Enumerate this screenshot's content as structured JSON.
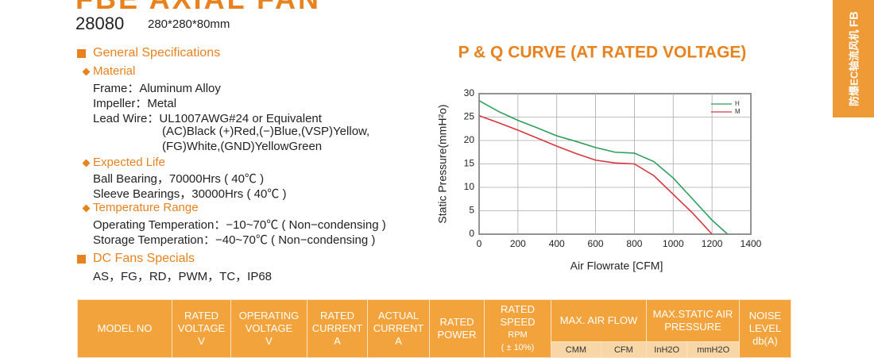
{
  "header": {
    "title": "FBE AXIAL FAN",
    "model": "28080",
    "size": "280*280*80mm"
  },
  "side_tab": {
    "label": "防爆EC轴流风机",
    "code": "FB"
  },
  "specs": {
    "general": {
      "heading": "General Specifications",
      "groups": [
        {
          "heading": "Material",
          "lines": [
            "Frame：Aluminum Alloy",
            "Impeller：Metal",
            "Lead Wire：UL1007AWG#24 or Equivalent",
            "(AC)Black (+)Red,(−)Blue,(VSP)Yellow,",
            "(FG)White,(GND)YellowGreen"
          ]
        },
        {
          "heading": "Expected Life",
          "lines": [
            "Ball Bearing，70000Hrs ( 40℃ )",
            "Sleeve Bearings，30000Hrs ( 40℃ )"
          ]
        },
        {
          "heading": "Temperature Range",
          "lines": [
            "Operating Temperation：−10~70℃ ( Non−condensing )",
            "Storage Temperation：−40~70℃ ( Non−condensing )"
          ]
        }
      ]
    },
    "dc_specials": {
      "heading": "DC Fans Specials",
      "lines": [
        "AS，FG，RD，PWM，TC，IP68"
      ]
    }
  },
  "chart_data": {
    "type": "line",
    "title": "P & Q CURVE (AT RATED VOLTAGE)",
    "ylabel": "Static Pressure(mmH²o)",
    "xlabel": "Air Flowrate [CFM]",
    "xlim": [
      0,
      1400
    ],
    "xticks": [
      0,
      200,
      400,
      600,
      800,
      1000,
      1200,
      1400
    ],
    "ylim": [
      0,
      30
    ],
    "yticks": [
      0,
      5,
      10,
      15,
      20,
      25,
      30
    ],
    "grid": true,
    "legend": "upper right",
    "series": [
      {
        "name": "H",
        "color": "#2e9e5b",
        "x": [
          0,
          100,
          200,
          300,
          400,
          500,
          600,
          700,
          800,
          900,
          1000,
          1100,
          1200,
          1280
        ],
        "values": [
          28.5,
          26.2,
          24.3,
          22.7,
          21,
          19.8,
          18.5,
          17.5,
          17.3,
          15.5,
          12,
          7.5,
          3,
          0
        ]
      },
      {
        "name": "M",
        "color": "#d9363e",
        "x": [
          0,
          100,
          200,
          300,
          400,
          500,
          600,
          700,
          800,
          900,
          1000,
          1100,
          1200
        ],
        "values": [
          25.3,
          23.8,
          22.2,
          20.5,
          18.8,
          17.2,
          15.8,
          15.2,
          15,
          12.5,
          8.5,
          4.5,
          0
        ]
      }
    ]
  },
  "table": {
    "columns": [
      {
        "lines": [
          "MODEL NO"
        ]
      },
      {
        "lines": [
          "RATED",
          "VOLTAGE",
          "V"
        ]
      },
      {
        "lines": [
          "OPERATING",
          "VOLTAGE",
          "V"
        ]
      },
      {
        "lines": [
          "RATED",
          "CURRENT",
          "A"
        ]
      },
      {
        "lines": [
          "ACTUAL",
          "CURRENT",
          "A"
        ]
      },
      {
        "lines": [
          "RATED",
          "POWER"
        ]
      },
      {
        "lines": [
          "RATED SPEED",
          "RPM",
          "( ± 10%)"
        ]
      },
      {
        "lines": [
          "MAX. AIR FLOW"
        ],
        "sub": [
          "CMM",
          "CFM"
        ]
      },
      {
        "lines": [
          "MAX.STATIC AIR",
          "PRESSURE"
        ],
        "sub": [
          "InH2O",
          "mmH2O"
        ]
      },
      {
        "lines": [
          "NOISE",
          "LEVEL",
          "db(A)"
        ]
      }
    ]
  }
}
